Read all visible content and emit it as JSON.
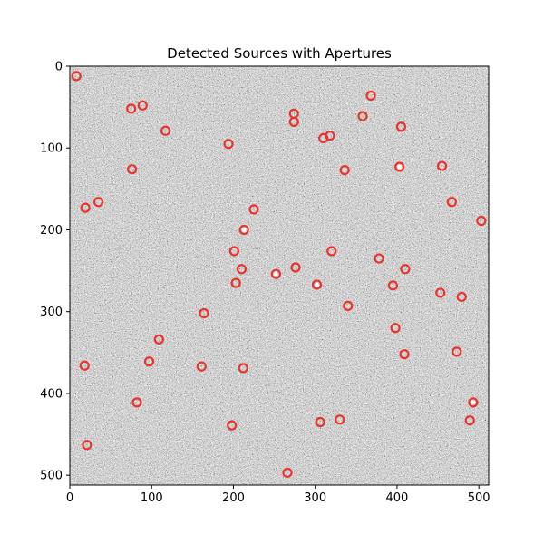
{
  "chart_data": {
    "type": "scatter",
    "title": "Detected Sources with Apertures",
    "xlabel": "",
    "ylabel": "",
    "xlim": [
      0,
      512
    ],
    "ylim": [
      512,
      0
    ],
    "x_ticks": [
      0,
      100,
      200,
      300,
      400,
      500
    ],
    "y_ticks": [
      0,
      100,
      200,
      300,
      400,
      500
    ],
    "background": "grayscale noise image",
    "aperture_color": "#e8342f",
    "bright_source_color": "#ffffff",
    "aperture_radius": 5,
    "sources": [
      {
        "x": 8,
        "y": 12
      },
      {
        "x": 89,
        "y": 48
      },
      {
        "x": 75,
        "y": 52
      },
      {
        "x": 274,
        "y": 58
      },
      {
        "x": 368,
        "y": 36
      },
      {
        "x": 358,
        "y": 61
      },
      {
        "x": 274,
        "y": 68
      },
      {
        "x": 405,
        "y": 74
      },
      {
        "x": 117,
        "y": 79
      },
      {
        "x": 318,
        "y": 85
      },
      {
        "x": 310,
        "y": 88
      },
      {
        "x": 194,
        "y": 95
      },
      {
        "x": 403,
        "y": 123
      },
      {
        "x": 455,
        "y": 122
      },
      {
        "x": 76,
        "y": 126
      },
      {
        "x": 336,
        "y": 127
      },
      {
        "x": 35,
        "y": 166
      },
      {
        "x": 19,
        "y": 173
      },
      {
        "x": 467,
        "y": 166
      },
      {
        "x": 225,
        "y": 175
      },
      {
        "x": 503,
        "y": 189
      },
      {
        "x": 213,
        "y": 200
      },
      {
        "x": 201,
        "y": 226
      },
      {
        "x": 320,
        "y": 226
      },
      {
        "x": 378,
        "y": 235
      },
      {
        "x": 210,
        "y": 248
      },
      {
        "x": 276,
        "y": 246
      },
      {
        "x": 410,
        "y": 248
      },
      {
        "x": 252,
        "y": 254
      },
      {
        "x": 203,
        "y": 265
      },
      {
        "x": 302,
        "y": 267
      },
      {
        "x": 395,
        "y": 268
      },
      {
        "x": 453,
        "y": 277
      },
      {
        "x": 479,
        "y": 282
      },
      {
        "x": 340,
        "y": 293
      },
      {
        "x": 164,
        "y": 302
      },
      {
        "x": 398,
        "y": 320
      },
      {
        "x": 109,
        "y": 334
      },
      {
        "x": 473,
        "y": 349
      },
      {
        "x": 409,
        "y": 352
      },
      {
        "x": 97,
        "y": 361
      },
      {
        "x": 18,
        "y": 366
      },
      {
        "x": 161,
        "y": 367
      },
      {
        "x": 212,
        "y": 369
      },
      {
        "x": 82,
        "y": 411
      },
      {
        "x": 493,
        "y": 411
      },
      {
        "x": 489,
        "y": 433
      },
      {
        "x": 330,
        "y": 432
      },
      {
        "x": 306,
        "y": 435
      },
      {
        "x": 198,
        "y": 439
      },
      {
        "x": 21,
        "y": 463
      },
      {
        "x": 266,
        "y": 497
      }
    ],
    "bright_sources": [
      {
        "x": 252,
        "y": 254
      },
      {
        "x": 403,
        "y": 123
      },
      {
        "x": 493,
        "y": 411
      },
      {
        "x": 302,
        "y": 267
      },
      {
        "x": 213,
        "y": 200
      }
    ]
  }
}
